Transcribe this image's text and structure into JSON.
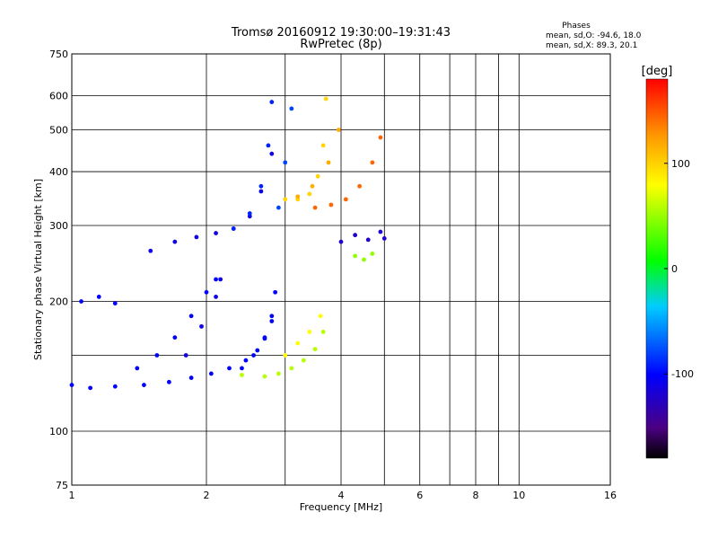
{
  "chart_data": {
    "type": "scatter",
    "title": "Tromsø 20160912 19:30:00–19:31:43",
    "subtitle": "RwPretec (8p)",
    "xlabel": "Frequency [MHz]",
    "ylabel": "Stationary phase Virtual Height [km]",
    "x_scale": "log",
    "y_scale": "log",
    "xlim": [
      1,
      16
    ],
    "ylim": [
      75,
      750
    ],
    "x_ticks": [
      1,
      2,
      4,
      6,
      8,
      10,
      16
    ],
    "x_minor_ticks": [
      3,
      5,
      7,
      9
    ],
    "y_ticks": [
      75,
      100,
      200,
      300,
      400,
      500,
      600,
      750
    ],
    "y_minor_ticks": [
      150
    ],
    "grid": true,
    "stats": {
      "heading": "Phases",
      "line1": "mean, sd,O: -94.6, 18.0",
      "line2": "mean, sd,X:  89.3, 20.1"
    },
    "colorbar": {
      "label": "[deg]",
      "min": -180,
      "max": 180,
      "ticks": [
        100,
        0,
        -100
      ],
      "tick_labels": [
        "100",
        "0",
        "-100"
      ]
    },
    "traces": [
      {
        "x": [
          1.0,
          1.1,
          1.25,
          1.45,
          1.65,
          1.85,
          2.05,
          2.25,
          2.45,
          2.6,
          2.7,
          2.8
        ],
        "y": [
          128,
          126,
          127,
          128,
          130,
          133,
          136,
          140,
          146,
          154,
          164,
          180
        ],
        "phase": -100
      },
      {
        "x": [
          1.4,
          1.55,
          1.7,
          1.85,
          2.0,
          2.1
        ],
        "y": [
          140,
          150,
          165,
          185,
          210,
          225
        ],
        "phase": -100
      },
      {
        "x": [
          1.8,
          1.95,
          2.1,
          2.15
        ],
        "y": [
          150,
          175,
          205,
          225
        ],
        "phase": -110
      },
      {
        "x": [
          2.4,
          2.55,
          2.7,
          2.8,
          2.85
        ],
        "y": [
          140,
          150,
          165,
          185,
          210
        ],
        "phase": -100
      },
      {
        "x": [
          2.4,
          2.7,
          2.9,
          3.1,
          3.3,
          3.5,
          3.65
        ],
        "y": [
          135,
          134,
          136,
          140,
          146,
          155,
          170
        ],
        "phase": 50
      },
      {
        "x": [
          3.0,
          3.2,
          3.4,
          3.6
        ],
        "y": [
          150,
          160,
          170,
          185
        ],
        "phase": 70
      },
      {
        "x": [
          1.05,
          1.15,
          1.25
        ],
        "y": [
          200,
          205,
          198
        ],
        "phase": -100
      },
      {
        "x": [
          1.5,
          1.7,
          1.9,
          2.1,
          2.3,
          2.5,
          2.65,
          2.8
        ],
        "y": [
          262,
          275,
          282,
          288,
          295,
          315,
          360,
          440
        ],
        "phase": -110
      },
      {
        "x": [
          2.3,
          2.5,
          2.65,
          2.75,
          2.8
        ],
        "y": [
          295,
          320,
          370,
          460,
          580
        ],
        "phase": -90
      },
      {
        "x": [
          2.9,
          3.0,
          3.1
        ],
        "y": [
          330,
          420,
          560
        ],
        "phase": -80
      },
      {
        "x": [
          3.0,
          3.2,
          3.4,
          3.55,
          3.65,
          3.7
        ],
        "y": [
          345,
          345,
          355,
          390,
          460,
          590
        ],
        "phase": 90
      },
      {
        "x": [
          3.5,
          3.8,
          4.1,
          4.4,
          4.7,
          4.9
        ],
        "y": [
          330,
          335,
          345,
          370,
          420,
          480
        ],
        "phase": 140
      },
      {
        "x": [
          3.2,
          3.45,
          3.75,
          3.95
        ],
        "y": [
          350,
          370,
          420,
          500
        ],
        "phase": 110
      },
      {
        "x": [
          4.0,
          4.3,
          4.6,
          4.9,
          5.0
        ],
        "y": [
          275,
          285,
          278,
          290,
          280
        ],
        "phase": -120
      },
      {
        "x": [
          4.3,
          4.5,
          4.7
        ],
        "y": [
          255,
          250,
          258
        ],
        "phase": 40
      }
    ]
  }
}
